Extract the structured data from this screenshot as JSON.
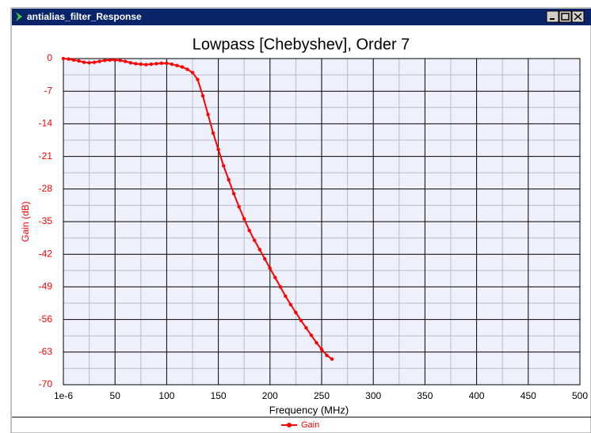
{
  "window": {
    "title": "antialias_filter_Response"
  },
  "chart_data": {
    "type": "line",
    "title": "Lowpass [Chebyshev], Order 7",
    "x_label": "Frequency (MHz)",
    "y_label": "Gain (dB)",
    "x": [
      0,
      5,
      10,
      15,
      20,
      25,
      30,
      35,
      40,
      45,
      50,
      55,
      60,
      65,
      70,
      75,
      80,
      85,
      90,
      95,
      100,
      105,
      110,
      115,
      120,
      125,
      130,
      135,
      140,
      145,
      150,
      155,
      160,
      165,
      170,
      175,
      180,
      185,
      190,
      195,
      200,
      205,
      210,
      215,
      220,
      225,
      230,
      235,
      240,
      245,
      250,
      255,
      260
    ],
    "series": [
      {
        "name": "Gain",
        "color": "#ff0000",
        "values": [
          0,
          -0.1,
          -0.3,
          -0.5,
          -0.8,
          -0.9,
          -0.8,
          -0.6,
          -0.4,
          -0.3,
          -0.3,
          -0.4,
          -0.6,
          -0.9,
          -1.1,
          -1.2,
          -1.3,
          -1.2,
          -1.1,
          -1.0,
          -1.0,
          -1.2,
          -1.5,
          -1.8,
          -2.3,
          -3.0,
          -4.5,
          -8,
          -12,
          -16,
          -19.5,
          -23,
          -26,
          -29,
          -31.8,
          -34.4,
          -36.9,
          -39,
          -41,
          -43,
          -45,
          -47,
          -49,
          -51,
          -52.8,
          -54.5,
          -56.2,
          -57.8,
          -59.4,
          -61,
          -62.4,
          -63.7,
          -64.5
        ]
      }
    ],
    "xlim": [
      0,
      500
    ],
    "xticks": [
      {
        "value": 1e-06,
        "label": "1e-6"
      },
      50,
      100,
      150,
      200,
      250,
      300,
      350,
      400,
      450,
      500
    ],
    "ylim": [
      -70,
      0
    ],
    "yticks": [
      0,
      -7,
      -14,
      -21,
      -28,
      -35,
      -42,
      -49,
      -56,
      -63,
      -70
    ],
    "grid": true
  }
}
